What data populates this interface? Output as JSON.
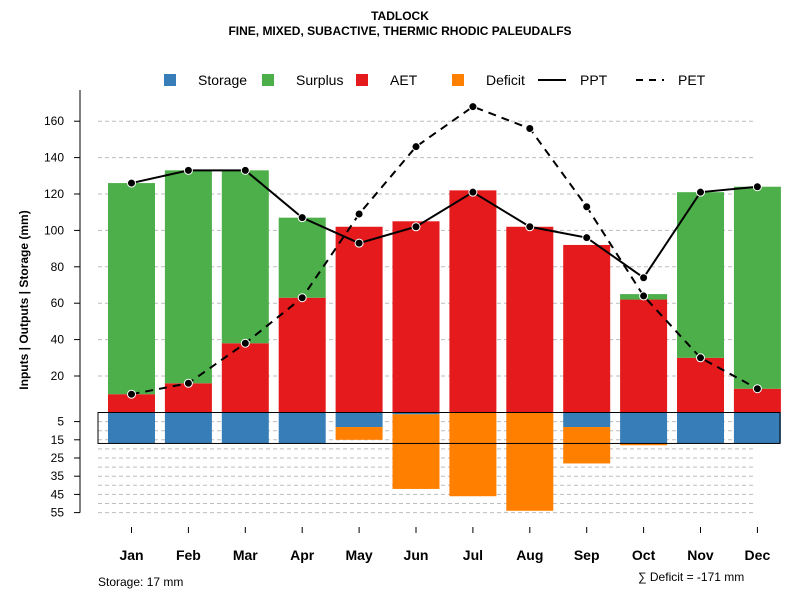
{
  "title": "TADLOCK",
  "subtitle": "FINE, MIXED, SUBACTIVE, THERMIC RHODIC PALEUDALFS",
  "storage_note": "Storage: 17 mm",
  "deficit_note": "∑ Deficit = -171 mm",
  "colors": {
    "storage": "#377eb8",
    "surplus": "#4daf4a",
    "aet": "#e41a1c",
    "deficit": "#ff7f00",
    "line": "#000000",
    "grid": "#bdbdbd"
  },
  "chart_data": {
    "type": "bar",
    "title": "TADLOCK",
    "subtitle": "FINE, MIXED, SUBACTIVE, THERMIC RHODIC PALEUDALFS",
    "ylabel": "Inputs | Outputs | Storage    (mm)",
    "ylim_upper": [
      0,
      170
    ],
    "ylim_lower": [
      0,
      55
    ],
    "upper_ticks": [
      20,
      40,
      60,
      80,
      100,
      120,
      140,
      160
    ],
    "lower_ticks": [
      5,
      15,
      25,
      35,
      45,
      55
    ],
    "categories": [
      "Jan",
      "Feb",
      "Mar",
      "Apr",
      "May",
      "Jun",
      "Jul",
      "Aug",
      "Sep",
      "Oct",
      "Nov",
      "Dec"
    ],
    "legend": [
      {
        "name": "Storage",
        "kind": "square",
        "color": "#377eb8"
      },
      {
        "name": "Surplus",
        "kind": "square",
        "color": "#4daf4a"
      },
      {
        "name": "AET",
        "kind": "square",
        "color": "#e41a1c"
      },
      {
        "name": "Deficit",
        "kind": "square",
        "color": "#ff7f00"
      },
      {
        "name": "PPT",
        "kind": "line",
        "color": "#000000"
      },
      {
        "name": "PET",
        "kind": "dashed",
        "color": "#000000"
      }
    ],
    "series": [
      {
        "name": "AET",
        "values": [
          10,
          16,
          38,
          63,
          102,
          105,
          122,
          102,
          92,
          62,
          30,
          13
        ]
      },
      {
        "name": "Surplus",
        "values": [
          116,
          117,
          95,
          44,
          0,
          0,
          0,
          0,
          0,
          3,
          91,
          111
        ]
      },
      {
        "name": "Storage",
        "values": [
          17,
          17,
          17,
          17,
          8,
          1,
          0,
          0,
          8,
          17,
          17,
          17
        ]
      },
      {
        "name": "Deficit",
        "values": [
          0,
          0,
          0,
          0,
          7,
          41,
          46,
          54,
          20,
          1,
          0,
          0
        ]
      },
      {
        "name": "PPT",
        "values": [
          126,
          133,
          133,
          107,
          93,
          102,
          121,
          102,
          96,
          74,
          121,
          124
        ]
      },
      {
        "name": "PET",
        "values": [
          10,
          16,
          38,
          63,
          109,
          146,
          168,
          156,
          113,
          64,
          30,
          13
        ]
      }
    ]
  }
}
